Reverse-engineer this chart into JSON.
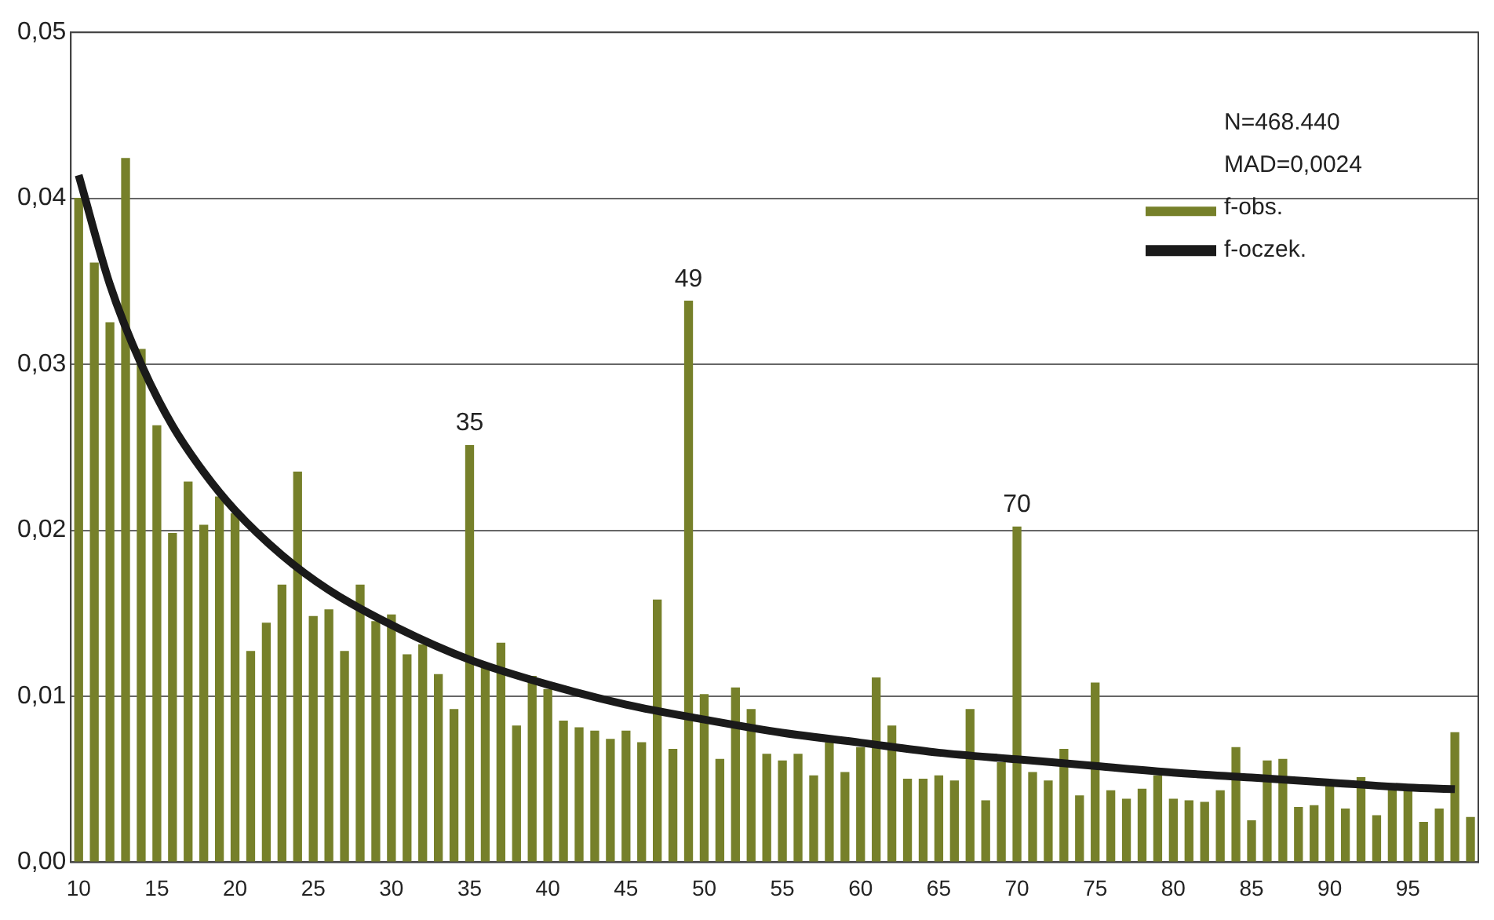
{
  "chart_data": {
    "type": "bar",
    "x": [
      10,
      11,
      12,
      13,
      14,
      15,
      16,
      17,
      18,
      19,
      20,
      21,
      22,
      23,
      24,
      25,
      26,
      27,
      28,
      29,
      30,
      31,
      32,
      33,
      34,
      35,
      36,
      37,
      38,
      39,
      40,
      41,
      42,
      43,
      44,
      45,
      46,
      47,
      48,
      49,
      50,
      51,
      52,
      53,
      54,
      55,
      56,
      57,
      58,
      59,
      60,
      61,
      62,
      63,
      64,
      65,
      66,
      67,
      68,
      69,
      70,
      71,
      72,
      73,
      74,
      75,
      76,
      77,
      78,
      79,
      80,
      81,
      82,
      83,
      84,
      85,
      86,
      87,
      88,
      89,
      90,
      91,
      92,
      93,
      94,
      95,
      96,
      97,
      98,
      99
    ],
    "series": [
      {
        "name": "f-obs.",
        "color": "#76802a",
        "values": [
          0.04,
          0.0361,
          0.0325,
          0.0424,
          0.0309,
          0.0263,
          0.0198,
          0.0229,
          0.0203,
          0.022,
          0.021,
          0.0127,
          0.0144,
          0.0167,
          0.0235,
          0.0148,
          0.0152,
          0.0127,
          0.0167,
          0.0145,
          0.0149,
          0.0125,
          0.0131,
          0.0113,
          0.0092,
          0.0251,
          0.0117,
          0.0132,
          0.0082,
          0.0112,
          0.0104,
          0.0085,
          0.0081,
          0.0079,
          0.0074,
          0.0079,
          0.0072,
          0.0158,
          0.0068,
          0.0338,
          0.0101,
          0.0062,
          0.0105,
          0.0092,
          0.0065,
          0.0061,
          0.0065,
          0.0052,
          0.0072,
          0.0054,
          0.0069,
          0.0111,
          0.0082,
          0.005,
          0.005,
          0.0052,
          0.0049,
          0.0092,
          0.0037,
          0.006,
          0.0202,
          0.0054,
          0.0049,
          0.0068,
          0.004,
          0.0108,
          0.0043,
          0.0038,
          0.0044,
          0.0052,
          0.0038,
          0.0037,
          0.0036,
          0.0043,
          0.0069,
          0.0025,
          0.0061,
          0.0062,
          0.0033,
          0.0034,
          0.0046,
          0.0032,
          0.0051,
          0.0028,
          0.0044,
          0.0044,
          0.0024,
          0.0032,
          0.0078,
          0.0027
        ]
      },
      {
        "name": "f-oczek.",
        "type": "line",
        "color": "#1a1a1a",
        "x": [
          10,
          12,
          14,
          16,
          18,
          20,
          23,
          26,
          30,
          35,
          40,
          45,
          50,
          55,
          60,
          65,
          70,
          75,
          80,
          85,
          90,
          95,
          98
        ],
        "values": [
          0.0414,
          0.0348,
          0.03,
          0.0263,
          0.0235,
          0.0212,
          0.0185,
          0.0164,
          0.0143,
          0.0122,
          0.0107,
          0.0095,
          0.0086,
          0.0078,
          0.0072,
          0.0066,
          0.0062,
          0.0058,
          0.0054,
          0.0051,
          0.0048,
          0.0045,
          0.0044
        ]
      }
    ],
    "xlim": [
      9.5,
      99.5
    ],
    "xticks": [
      10,
      15,
      20,
      25,
      30,
      35,
      40,
      45,
      50,
      55,
      60,
      65,
      70,
      75,
      80,
      85,
      90,
      95
    ],
    "ylim": [
      0,
      0.05
    ],
    "yticks": [
      {
        "value": 0,
        "label": "0,00"
      },
      {
        "value": 0.01,
        "label": "0,01"
      },
      {
        "value": 0.02,
        "label": "0,02"
      },
      {
        "value": 0.03,
        "label": "0,03"
      },
      {
        "value": 0.04,
        "label": "0,04"
      },
      {
        "value": 0.05,
        "label": "0,05"
      }
    ],
    "grid": "y",
    "legend": "top right",
    "marker": "none",
    "annotations": [
      "N=468.440",
      "MAD=0,0024",
      {
        "text": "35",
        "x": 35,
        "y": 0.0251
      },
      {
        "text": "49",
        "x": 49,
        "y": 0.0338
      },
      {
        "text": "70",
        "x": 70,
        "y": 0.0202
      }
    ]
  }
}
